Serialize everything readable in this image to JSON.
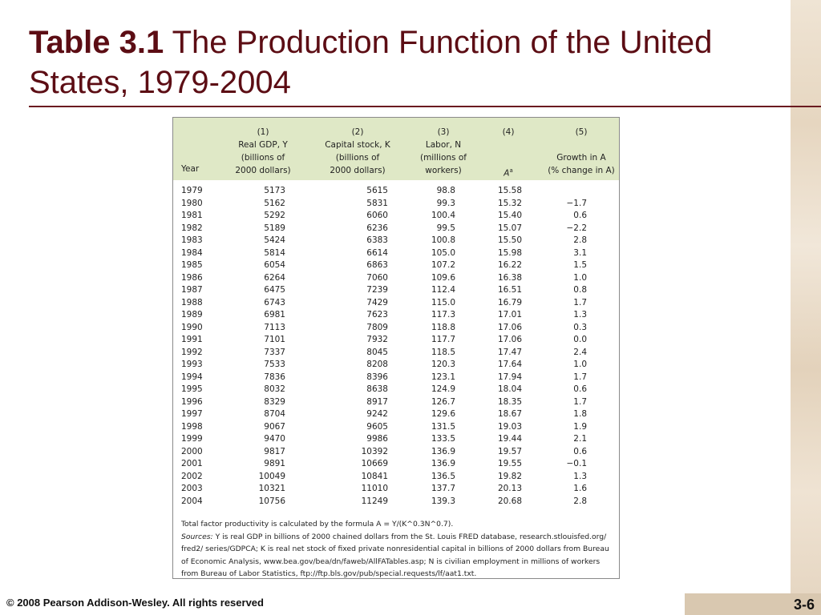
{
  "slide": {
    "title_bold": "Table 3.1",
    "title_rest": " The Production Function of the United States, 1979-2004",
    "copyright": "© 2008 Pearson Addison-Wesley. All rights reserved",
    "page_number": "3-6"
  },
  "table": {
    "headers": {
      "year": "Year",
      "col1": [
        "(1)",
        "Real GDP, Y",
        "(billions of",
        "2000 dollars)"
      ],
      "col2": [
        "(2)",
        "Capital stock, K",
        "(billions of",
        "2000 dollars)"
      ],
      "col3": [
        "(3)",
        "Labor, N",
        "(millions of",
        "workers)"
      ],
      "col4": [
        "(4)",
        "A"
      ],
      "col4_sup": "a",
      "col5": [
        "(5)",
        "Growth in A",
        "(% change in A)"
      ]
    },
    "rows": [
      [
        "1979",
        "5173",
        "5615",
        "98.8",
        "15.58",
        ""
      ],
      [
        "1980",
        "5162",
        "5831",
        "99.3",
        "15.32",
        "−1.7"
      ],
      [
        "1981",
        "5292",
        "6060",
        "100.4",
        "15.40",
        "0.6"
      ],
      [
        "1982",
        "5189",
        "6236",
        "99.5",
        "15.07",
        "−2.2"
      ],
      [
        "1983",
        "5424",
        "6383",
        "100.8",
        "15.50",
        "2.8"
      ],
      [
        "1984",
        "5814",
        "6614",
        "105.0",
        "15.98",
        "3.1"
      ],
      [
        "1985",
        "6054",
        "6863",
        "107.2",
        "16.22",
        "1.5"
      ],
      [
        "1986",
        "6264",
        "7060",
        "109.6",
        "16.38",
        "1.0"
      ],
      [
        "1987",
        "6475",
        "7239",
        "112.4",
        "16.51",
        "0.8"
      ],
      [
        "1988",
        "6743",
        "7429",
        "115.0",
        "16.79",
        "1.7"
      ],
      [
        "1989",
        "6981",
        "7623",
        "117.3",
        "17.01",
        "1.3"
      ],
      [
        "1990",
        "7113",
        "7809",
        "118.8",
        "17.06",
        "0.3"
      ],
      [
        "1991",
        "7101",
        "7932",
        "117.7",
        "17.06",
        "0.0"
      ],
      [
        "1992",
        "7337",
        "8045",
        "118.5",
        "17.47",
        "2.4"
      ],
      [
        "1993",
        "7533",
        "8208",
        "120.3",
        "17.64",
        "1.0"
      ],
      [
        "1994",
        "7836",
        "8396",
        "123.1",
        "17.94",
        "1.7"
      ],
      [
        "1995",
        "8032",
        "8638",
        "124.9",
        "18.04",
        "0.6"
      ],
      [
        "1996",
        "8329",
        "8917",
        "126.7",
        "18.35",
        "1.7"
      ],
      [
        "1997",
        "8704",
        "9242",
        "129.6",
        "18.67",
        "1.8"
      ],
      [
        "1998",
        "9067",
        "9605",
        "131.5",
        "19.03",
        "1.9"
      ],
      [
        "1999",
        "9470",
        "9986",
        "133.5",
        "19.44",
        "2.1"
      ],
      [
        "2000",
        "9817",
        "10392",
        "136.9",
        "19.57",
        "0.6"
      ],
      [
        "2001",
        "9891",
        "10669",
        "136.9",
        "19.55",
        "−0.1"
      ],
      [
        "2002",
        "10049",
        "10841",
        "136.5",
        "19.82",
        "1.3"
      ],
      [
        "2003",
        "10321",
        "11010",
        "137.7",
        "20.13",
        "1.6"
      ],
      [
        "2004",
        "10756",
        "11249",
        "139.3",
        "20.68",
        "2.8"
      ]
    ],
    "notes": {
      "footnote_a": "Total factor productivity is calculated by the formula A = Y/(K^0.3N^0.7).",
      "sources_label": "Sources:",
      "sources_text": "Y is real GDP in billions of 2000 chained dollars from the St. Louis FRED database, research.stlouisfed.org/ fred2/ series/GDPCA; K is real net stock of fixed private nonresidential capital in billions of 2000 dollars from Bureau of Economic Analysis, www.bea.gov/bea/dn/faweb/AllFATables.asp; N is civilian employment in millions of workers from Bureau of Labor Statistics, ftp://ftp.bls.gov/pub/special.requests/lf/aat1.txt."
    }
  }
}
